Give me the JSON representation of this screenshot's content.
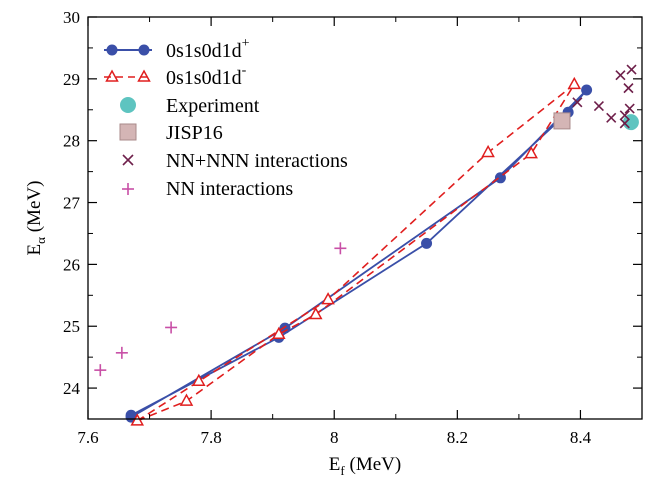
{
  "chart_data": {
    "type": "scatter",
    "title": "",
    "xlabel": "E_f (MeV)",
    "xlabel_main": "E",
    "xlabel_sub": "f",
    "xlabel_unit": " (MeV)",
    "ylabel": "E_α (MeV)",
    "ylabel_main": "E",
    "ylabel_sub": "α",
    "ylabel_unit": " (MeV)",
    "xlim": [
      7.6,
      8.5
    ],
    "ylim": [
      23.5,
      30
    ],
    "xticks": [
      7.6,
      7.8,
      8.0,
      8.2,
      8.4
    ],
    "xtick_labels": [
      "7.6",
      "7.8",
      "8",
      "8.2",
      "8.4"
    ],
    "yticks": [
      24,
      25,
      26,
      27,
      28,
      29,
      30
    ],
    "ytick_labels": [
      "24",
      "25",
      "26",
      "27",
      "28",
      "29",
      "30"
    ],
    "grid": false,
    "legend_position": "top-left",
    "series": [
      {
        "name": "0s1s0d1d",
        "name_sup": "+",
        "style": "line-filled-circle",
        "color": "#3a4fa8",
        "points": [
          [
            7.67,
            23.56
          ],
          [
            7.67,
            23.53
          ],
          [
            7.91,
            24.82
          ],
          [
            7.92,
            24.97
          ],
          [
            8.15,
            26.34
          ],
          [
            8.27,
            27.4
          ],
          [
            8.38,
            28.46
          ],
          [
            8.41,
            28.82
          ]
        ],
        "path_order": [
          0,
          2,
          4,
          6,
          7,
          5,
          3,
          1,
          0
        ]
      },
      {
        "name": "0s1s0d1d",
        "name_sup": "-",
        "style": "dashed-open-triangle",
        "color": "#e01e1e",
        "points": [
          [
            7.68,
            23.47
          ],
          [
            7.76,
            23.79
          ],
          [
            7.78,
            24.11
          ],
          [
            7.91,
            24.87
          ],
          [
            7.97,
            25.19
          ],
          [
            7.99,
            25.43
          ],
          [
            8.25,
            27.81
          ],
          [
            8.32,
            27.79
          ],
          [
            8.39,
            28.91
          ]
        ],
        "path_order": [
          0,
          1,
          3,
          4,
          7,
          8,
          6,
          5,
          2,
          0
        ]
      },
      {
        "name": "Experiment",
        "style": "filled-circle-large",
        "color": "#5ec4c0",
        "points": [
          [
            8.482,
            28.3
          ]
        ]
      },
      {
        "name": "JISP16",
        "style": "filled-square",
        "color": "#d4b5b5",
        "edge": "#a98a8a",
        "points": [
          [
            8.37,
            28.32
          ]
        ]
      },
      {
        "name": "NN+NNN interactions",
        "style": "x-marker",
        "color": "#6e1f4a",
        "points": [
          [
            8.395,
            28.62
          ],
          [
            8.43,
            28.56
          ],
          [
            8.45,
            28.37
          ],
          [
            8.465,
            29.06
          ],
          [
            8.472,
            28.41
          ],
          [
            8.472,
            28.28
          ],
          [
            8.478,
            28.85
          ],
          [
            8.48,
            28.52
          ],
          [
            8.483,
            29.15
          ]
        ]
      },
      {
        "name": "NN interactions",
        "style": "plus-marker",
        "color": "#c84fa6",
        "points": [
          [
            7.62,
            24.29
          ],
          [
            7.655,
            24.57
          ],
          [
            7.735,
            24.98
          ],
          [
            8.01,
            26.26
          ]
        ]
      }
    ]
  }
}
